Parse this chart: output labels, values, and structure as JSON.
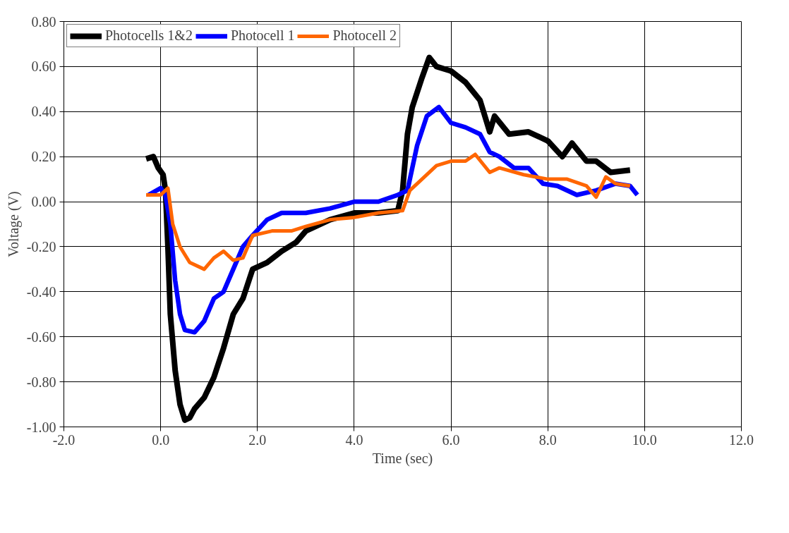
{
  "chart_data": {
    "type": "line",
    "xlabel": "Time (sec)",
    "ylabel": "Voltage (V)",
    "xlim": [
      -2,
      12
    ],
    "ylim": [
      -1,
      0.8
    ],
    "xticks": [
      {
        "value": -2,
        "label": "-2.0"
      },
      {
        "value": 0,
        "label": "0.0"
      },
      {
        "value": 2,
        "label": "2.0"
      },
      {
        "value": 4,
        "label": "4.0"
      },
      {
        "value": 6,
        "label": "6.0"
      },
      {
        "value": 8,
        "label": "8.0"
      },
      {
        "value": 10,
        "label": "10.0"
      },
      {
        "value": 12,
        "label": "12.0"
      }
    ],
    "yticks": [
      {
        "value": -1,
        "label": "-1.00"
      },
      {
        "value": -0.8,
        "label": "-0.80"
      },
      {
        "value": -0.6,
        "label": "-0.60"
      },
      {
        "value": -0.4,
        "label": "-0.40"
      },
      {
        "value": -0.2,
        "label": "-0.20"
      },
      {
        "value": 0,
        "label": "0.00"
      },
      {
        "value": 0.2,
        "label": "0.20"
      },
      {
        "value": 0.4,
        "label": "0.40"
      },
      {
        "value": 0.6,
        "label": "0.60"
      },
      {
        "value": 0.8,
        "label": "0.80"
      }
    ],
    "grid": true,
    "legend": "top left",
    "marker": "none",
    "line_style": "solid",
    "series": [
      {
        "name": "Photocells 1&2",
        "color": "#000000",
        "x": [
          -0.3,
          -0.15,
          -0.05,
          0.05,
          0.1,
          0.15,
          0.2,
          0.3,
          0.4,
          0.5,
          0.6,
          0.7,
          0.9,
          1.1,
          1.3,
          1.5,
          1.7,
          1.9,
          2.2,
          2.5,
          2.8,
          3.0,
          3.5,
          4.0,
          4.5,
          4.9,
          5.0,
          5.1,
          5.2,
          5.4,
          5.55,
          5.7,
          6.0,
          6.3,
          6.6,
          6.8,
          6.9,
          7.2,
          7.6,
          8.0,
          8.3,
          8.5,
          8.8,
          9.0,
          9.3,
          9.7
        ],
        "values": [
          0.19,
          0.2,
          0.15,
          0.12,
          0.05,
          -0.2,
          -0.5,
          -0.75,
          -0.9,
          -0.97,
          -0.96,
          -0.92,
          -0.87,
          -0.78,
          -0.65,
          -0.5,
          -0.43,
          -0.3,
          -0.27,
          -0.22,
          -0.18,
          -0.13,
          -0.08,
          -0.05,
          -0.05,
          -0.04,
          0.05,
          0.3,
          0.42,
          0.55,
          0.64,
          0.6,
          0.58,
          0.53,
          0.45,
          0.31,
          0.38,
          0.3,
          0.31,
          0.27,
          0.2,
          0.26,
          0.18,
          0.18,
          0.13,
          0.14
        ]
      },
      {
        "name": "Photocell 1",
        "color": "#0000ff",
        "x": [
          -0.25,
          0.0,
          0.1,
          0.2,
          0.3,
          0.4,
          0.5,
          0.7,
          0.9,
          1.1,
          1.3,
          1.5,
          1.7,
          1.9,
          2.2,
          2.5,
          3.0,
          3.5,
          4.0,
          4.5,
          4.9,
          5.1,
          5.3,
          5.5,
          5.75,
          6.0,
          6.3,
          6.6,
          6.8,
          7.0,
          7.3,
          7.6,
          7.9,
          8.2,
          8.6,
          9.0,
          9.4,
          9.7,
          9.85
        ],
        "values": [
          0.03,
          0.06,
          0.03,
          -0.1,
          -0.35,
          -0.5,
          -0.57,
          -0.58,
          -0.53,
          -0.43,
          -0.4,
          -0.3,
          -0.2,
          -0.15,
          -0.08,
          -0.05,
          -0.05,
          -0.03,
          0.0,
          0.0,
          0.03,
          0.05,
          0.25,
          0.38,
          0.42,
          0.35,
          0.33,
          0.3,
          0.22,
          0.2,
          0.15,
          0.15,
          0.08,
          0.07,
          0.03,
          0.05,
          0.08,
          0.07,
          0.03
        ]
      },
      {
        "name": "Photocell 2",
        "color": "#ff6600",
        "x": [
          -0.3,
          0.0,
          0.15,
          0.25,
          0.4,
          0.6,
          0.9,
          1.1,
          1.3,
          1.5,
          1.7,
          1.9,
          2.3,
          2.7,
          3.0,
          3.5,
          4.0,
          4.5,
          5.0,
          5.15,
          5.4,
          5.7,
          6.0,
          6.3,
          6.5,
          6.8,
          7.0,
          7.5,
          8.0,
          8.4,
          8.8,
          9.0,
          9.2,
          9.4,
          9.7
        ],
        "values": [
          0.03,
          0.03,
          0.06,
          -0.1,
          -0.2,
          -0.27,
          -0.3,
          -0.25,
          -0.22,
          -0.26,
          -0.25,
          -0.15,
          -0.13,
          -0.13,
          -0.11,
          -0.08,
          -0.07,
          -0.05,
          -0.04,
          0.05,
          0.1,
          0.16,
          0.18,
          0.18,
          0.21,
          0.13,
          0.15,
          0.12,
          0.1,
          0.1,
          0.07,
          0.02,
          0.11,
          0.08,
          0.07
        ]
      }
    ]
  }
}
